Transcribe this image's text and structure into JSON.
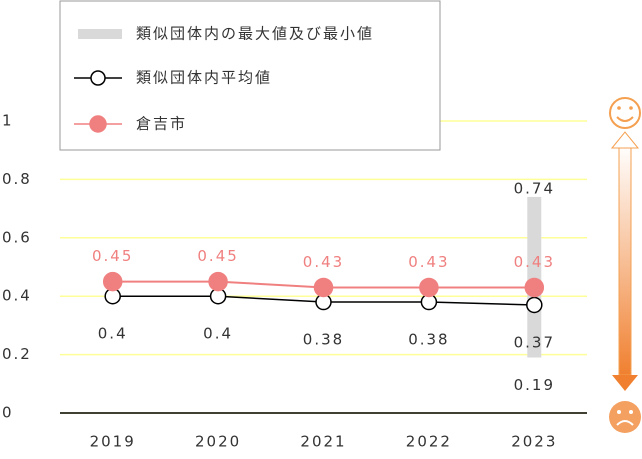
{
  "chart_data": {
    "type": "line",
    "categories": [
      "2019",
      "2020",
      "2021",
      "2022",
      "2023"
    ],
    "series": [
      {
        "name": "類似団体内平均値",
        "color": "#000000",
        "values": [
          0.4,
          0.4,
          0.38,
          0.38,
          0.37
        ]
      },
      {
        "name": "倉吉市",
        "color": "#f08080",
        "values": [
          0.45,
          0.45,
          0.43,
          0.43,
          0.43
        ]
      }
    ],
    "range": {
      "name": "類似団体内の最大値及び最小値",
      "color": "#d9d9d9",
      "max": [
        null,
        null,
        null,
        null,
        0.74
      ],
      "min": [
        null,
        null,
        null,
        null,
        0.19
      ]
    },
    "ylim": [
      0,
      1
    ],
    "yticks": [
      0,
      0.2,
      0.4,
      0.6,
      0.8,
      1
    ],
    "grid": true,
    "grid_color": "#ffff99"
  }
}
